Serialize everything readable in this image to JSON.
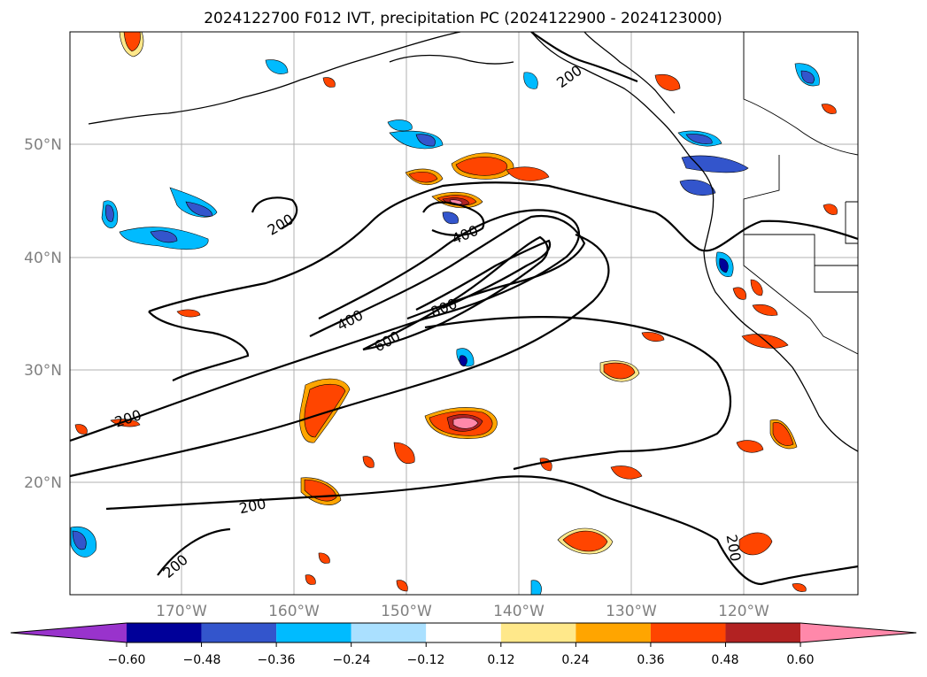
{
  "title": "2024122700 F012 IVT, precipitation PC (2024122900 - 2024123000)",
  "map": {
    "lat_labels": [
      "50°N",
      "40°N",
      "30°N",
      "20°N"
    ],
    "lon_labels": [
      "170°W",
      "160°W",
      "150°W",
      "140°W",
      "130°W",
      "120°W"
    ],
    "contour_labels": [
      "200",
      "200",
      "200",
      "200",
      "200",
      "200",
      "400",
      "400",
      "600",
      "800"
    ],
    "contour_levels": [
      200,
      400,
      600,
      800
    ]
  },
  "colorbar": {
    "ticks": [
      "−0.60",
      "−0.48",
      "−0.36",
      "−0.24",
      "−0.12",
      "0.12",
      "0.24",
      "0.36",
      "0.48",
      "0.60"
    ],
    "colors": [
      "#9933cc",
      "#000099",
      "#3355cc",
      "#00bbff",
      "#aae0ff",
      "#ffffff",
      "#ffe88a",
      "#ffa500",
      "#ff4500",
      "#b22222",
      "#ff88aa"
    ]
  }
}
